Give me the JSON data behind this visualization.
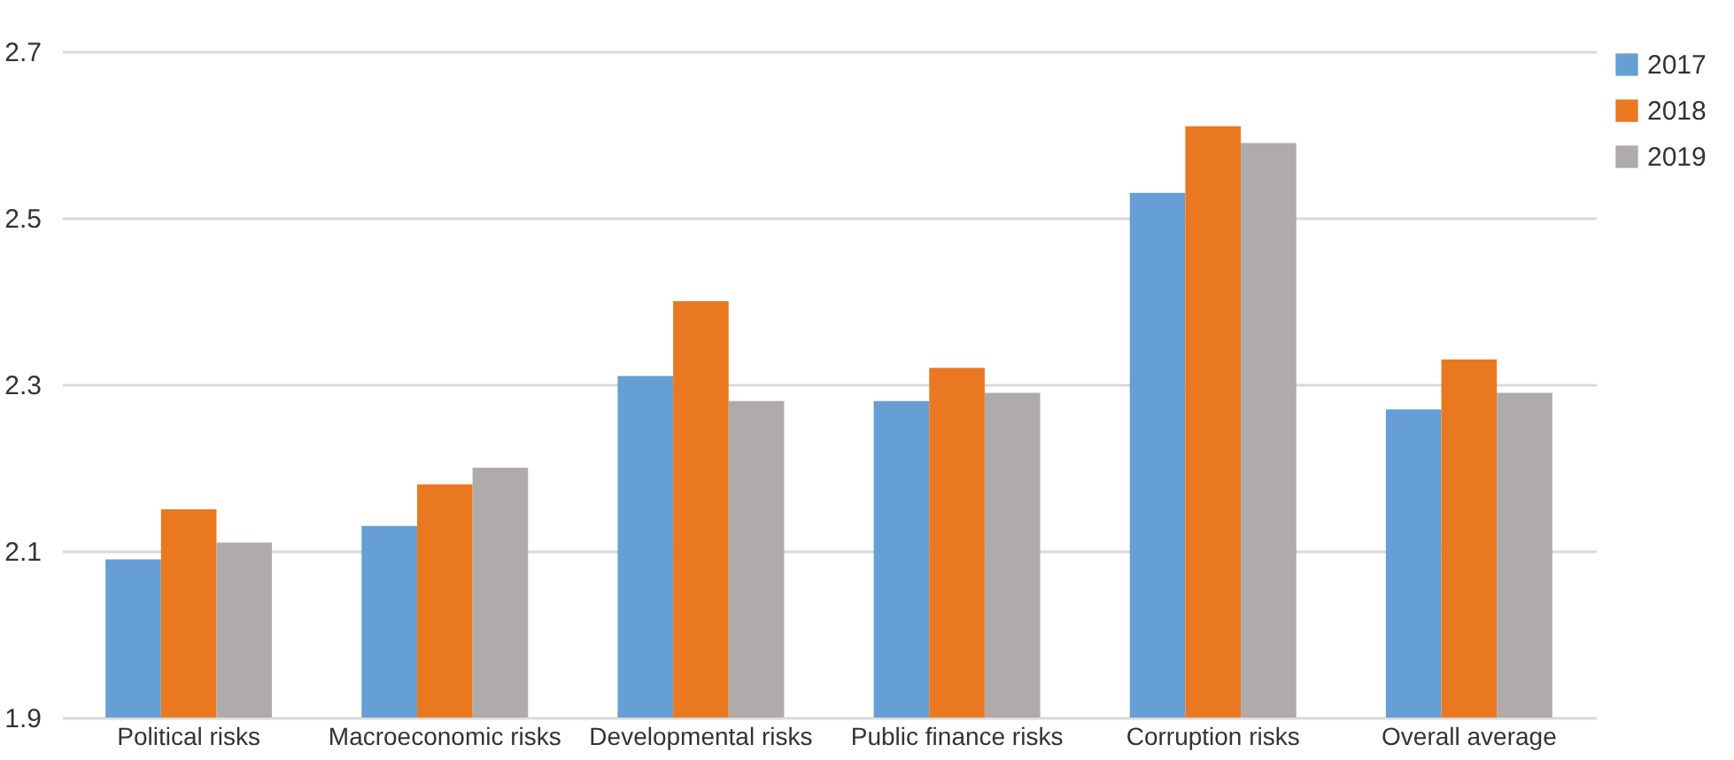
{
  "chart_data": {
    "type": "bar",
    "categories": [
      "Political risks",
      "Macroeconomic risks",
      "Developmental risks",
      "Public finance risks",
      "Corruption risks",
      "Overall average"
    ],
    "series": [
      {
        "name": "2017",
        "color": "#659fd5",
        "values": [
          2.09,
          2.13,
          2.31,
          2.28,
          2.53,
          2.27
        ]
      },
      {
        "name": "2018",
        "color": "#e97820",
        "values": [
          2.15,
          2.18,
          2.4,
          2.32,
          2.61,
          2.33
        ]
      },
      {
        "name": "2019",
        "color": "#afabaa",
        "values": [
          2.11,
          2.2,
          2.28,
          2.29,
          2.59,
          2.29
        ]
      }
    ],
    "ylim": [
      1.9,
      2.7
    ],
    "yticks": [
      1.9,
      2.1,
      2.3,
      2.5,
      2.7
    ],
    "grid": "y",
    "legend": "right"
  }
}
